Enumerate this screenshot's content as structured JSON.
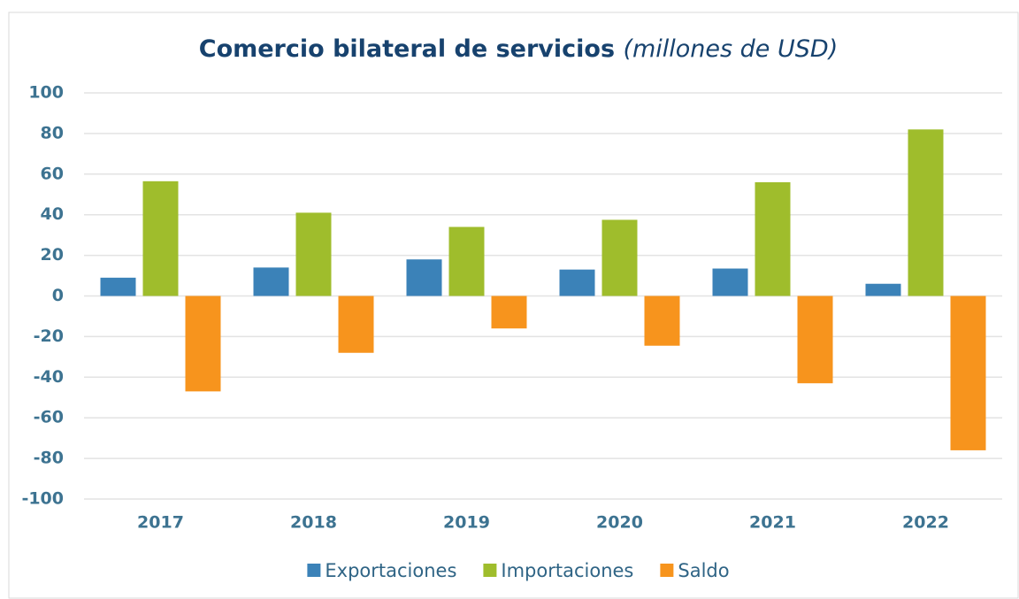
{
  "chart_data": {
    "type": "bar",
    "title": "Comercio bilateral de servicios",
    "subtitle": "(millones de USD)",
    "categories": [
      "2017",
      "2018",
      "2019",
      "2020",
      "2021",
      "2022"
    ],
    "series": [
      {
        "name": "Exportaciones",
        "color": "#3b82b8",
        "values": [
          9,
          14,
          18,
          13,
          13.5,
          6
        ]
      },
      {
        "name": "Importaciones",
        "color": "#9fbd2c",
        "values": [
          56.5,
          41,
          34,
          37.5,
          56,
          82
        ]
      },
      {
        "name": "Saldo",
        "color": "#f7941d",
        "values": [
          -47,
          -28,
          -16,
          -24.5,
          -43,
          -76
        ]
      }
    ],
    "ylim": [
      -100,
      100
    ],
    "yticks": [
      -100,
      -80,
      -60,
      -40,
      -20,
      0,
      20,
      40,
      60,
      80,
      100
    ],
    "grid": true,
    "legend": "bottom"
  }
}
